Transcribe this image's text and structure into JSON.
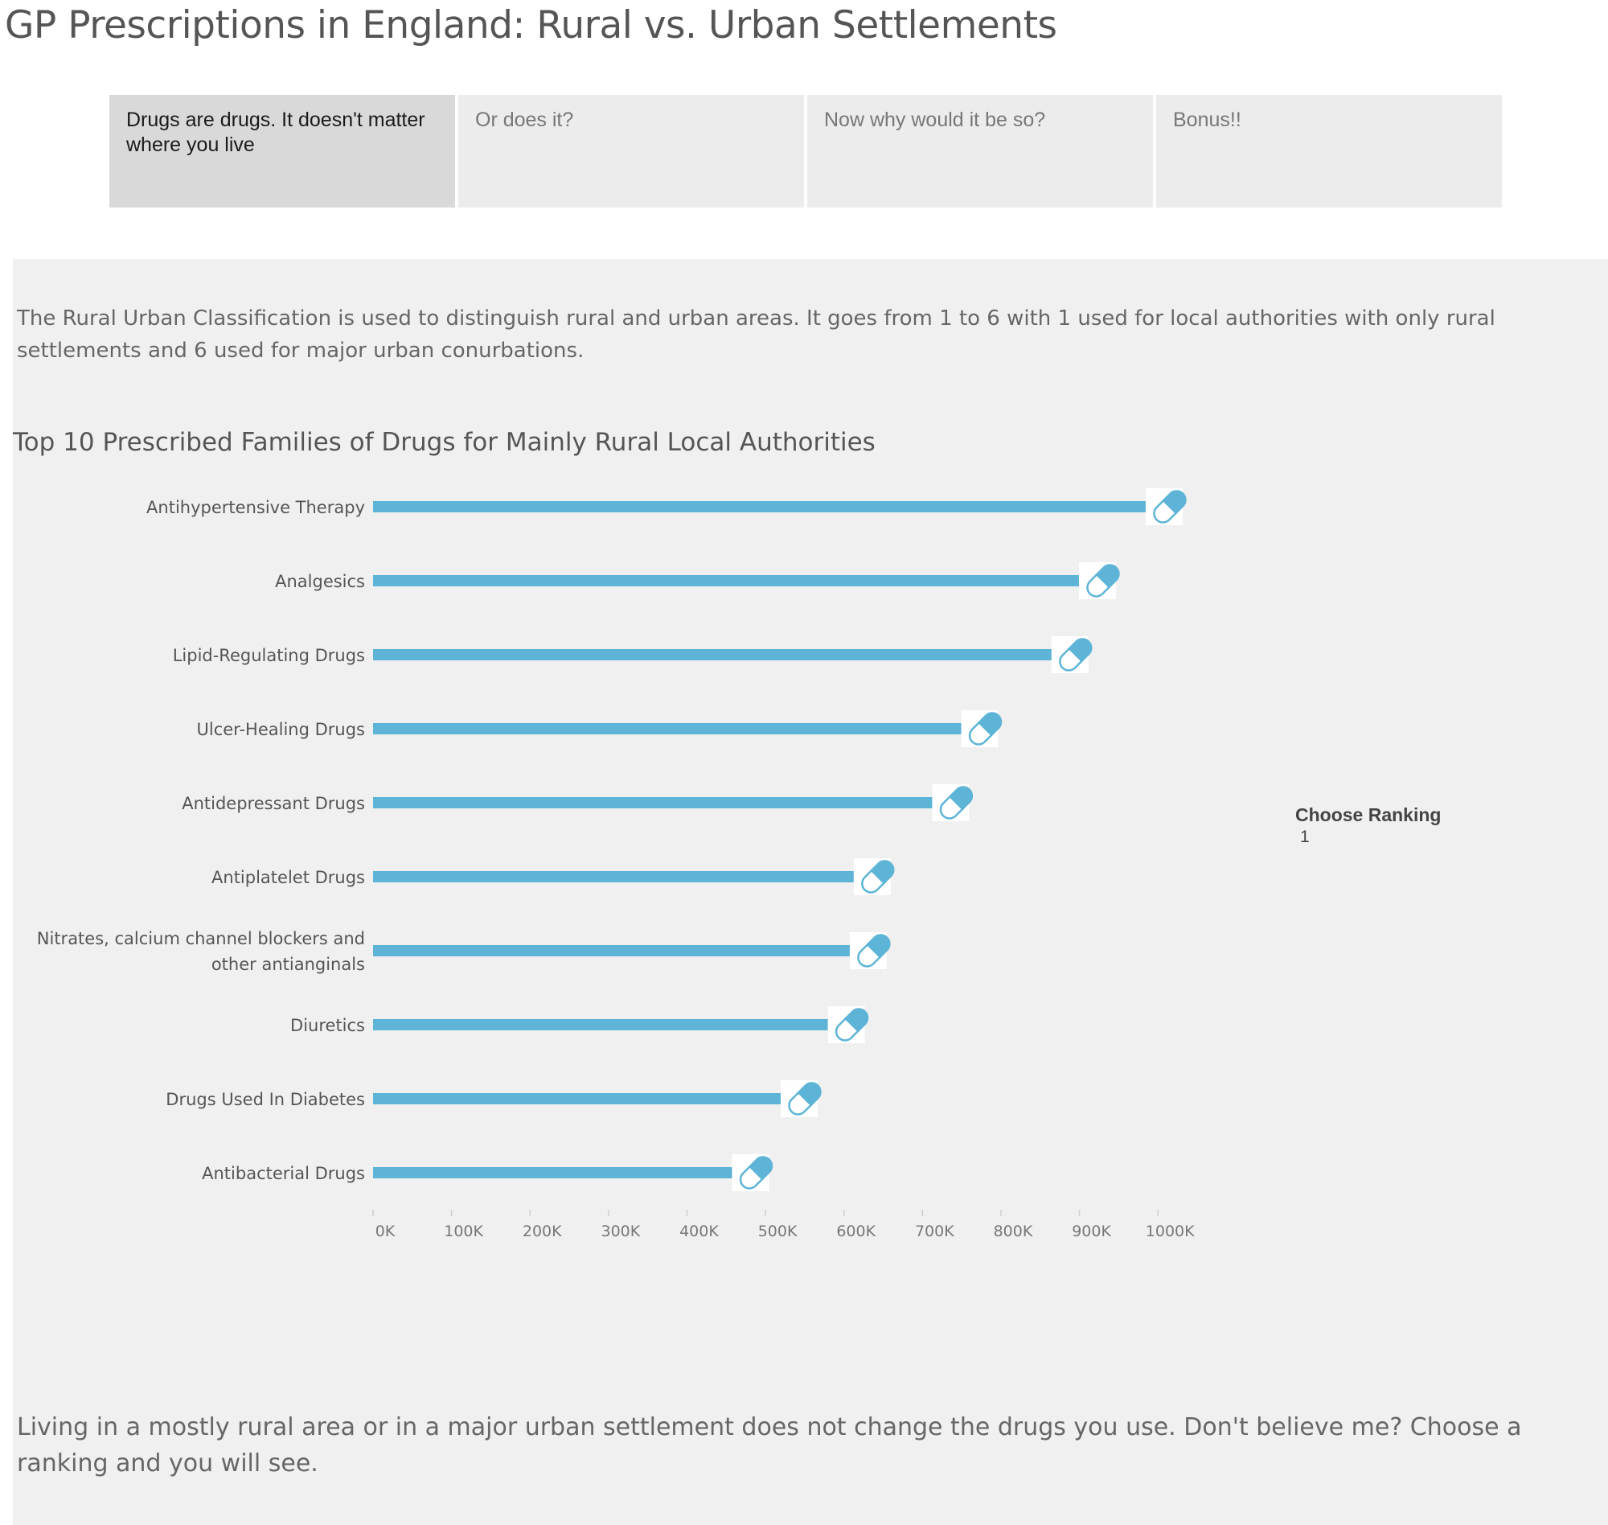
{
  "page": {
    "title": "GP Prescriptions in England: Rural vs. Urban Settlements"
  },
  "tabs": [
    {
      "label": "Drugs are drugs. It doesn't matter where you live",
      "active": true
    },
    {
      "label": "Or does it?",
      "active": false
    },
    {
      "label": "Now why would it be so?",
      "active": false
    },
    {
      "label": "Bonus!!",
      "active": false
    }
  ],
  "intro": "The Rural Urban Classification is used to distinguish rural and urban areas. It goes from 1 to 6 with 1 used for local authorities with only rural settlements and 6 used for major urban conurbations.",
  "filter": {
    "label": "Choose Ranking",
    "value": "1"
  },
  "outro": "Living in a mostly rural area or in a major urban settlement does not change the drugs you use. Don't believe me? Choose a ranking and you will see.",
  "colors": {
    "bar": "#5db4d6",
    "capsule": "#5db4d6",
    "panel": "#f0f0f0",
    "tab_active": "#d9d9d9",
    "tab": "#ececec"
  },
  "chart_data": {
    "type": "bar",
    "orientation": "horizontal",
    "title": "Top 10 Prescribed Families of Drugs for Mainly Rural Local Authorities",
    "categories": [
      "Antihypertensive Therapy",
      "Analgesics",
      "Lipid-Regulating Drugs",
      "Ulcer-Healing Drugs",
      "Antidepressant Drugs",
      "Antiplatelet Drugs",
      "Nitrates, calcium channel blockers and other antianginals",
      "Diuretics",
      "Drugs Used In Diabetes",
      "Antibacterial Drugs"
    ],
    "category_lines": [
      [
        "Antihypertensive Therapy"
      ],
      [
        "Analgesics"
      ],
      [
        "Lipid-Regulating Drugs"
      ],
      [
        "Ulcer-Healing Drugs"
      ],
      [
        "Antidepressant Drugs"
      ],
      [
        "Antiplatelet Drugs"
      ],
      [
        "Nitrates, calcium channel blockers and",
        "other antianginals"
      ],
      [
        "Diuretics"
      ],
      [
        "Drugs Used In Diabetes"
      ],
      [
        "Antibacterial Drugs"
      ]
    ],
    "values": [
      1010000,
      925000,
      890000,
      775000,
      738000,
      638000,
      633000,
      605000,
      545000,
      483000
    ],
    "xlim": [
      0,
      1050000
    ],
    "xticks": [
      0,
      100000,
      200000,
      300000,
      400000,
      500000,
      600000,
      700000,
      800000,
      900000,
      1000000
    ],
    "xtick_labels": [
      "0K",
      "100K",
      "200K",
      "300K",
      "400K",
      "500K",
      "600K",
      "700K",
      "800K",
      "900K",
      "1000K"
    ],
    "xlabel": "",
    "ylabel": "",
    "marker": "capsule-icon",
    "grid": false
  }
}
